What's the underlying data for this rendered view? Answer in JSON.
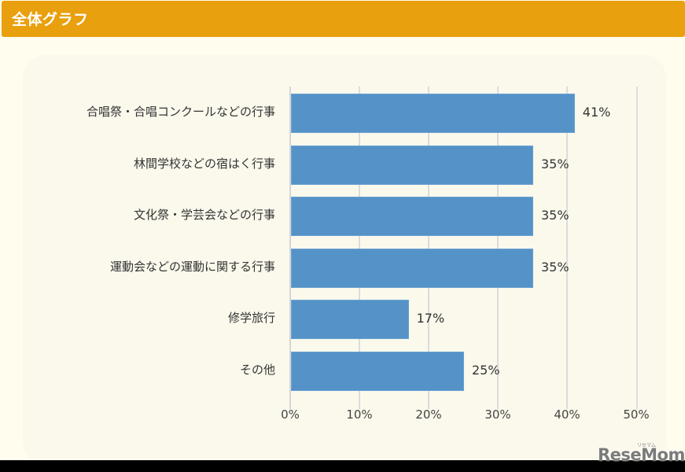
{
  "header": {
    "title": "全体グラフ"
  },
  "chart_data": {
    "type": "bar",
    "orientation": "horizontal",
    "title": "全体グラフ",
    "categories": [
      "合唱祭・合唱コンクールなどの行事",
      "林間学校などの宿はく行事",
      "文化祭・学芸会などの行事",
      "運動会などの運動に関する行事",
      "修学旅行",
      "その他"
    ],
    "values": [
      41,
      35,
      35,
      35,
      17,
      25
    ],
    "value_labels": [
      "41%",
      "35%",
      "35%",
      "35%",
      "17%",
      "25%"
    ],
    "xlabel": "",
    "ylabel": "",
    "xlim": [
      0,
      50
    ],
    "x_ticks": [
      "0%",
      "10%",
      "20%",
      "30%",
      "40%",
      "50%"
    ],
    "grid": true,
    "legend": null,
    "bar_color": "#5592c8"
  },
  "watermark": {
    "text": "ReseMom",
    "kana": "リセマム"
  },
  "colors": {
    "header_bg": "#e9a00e",
    "page_bg": "#fffdee",
    "panel_bg": "#fbf9ec",
    "bar": "#5592c8"
  }
}
